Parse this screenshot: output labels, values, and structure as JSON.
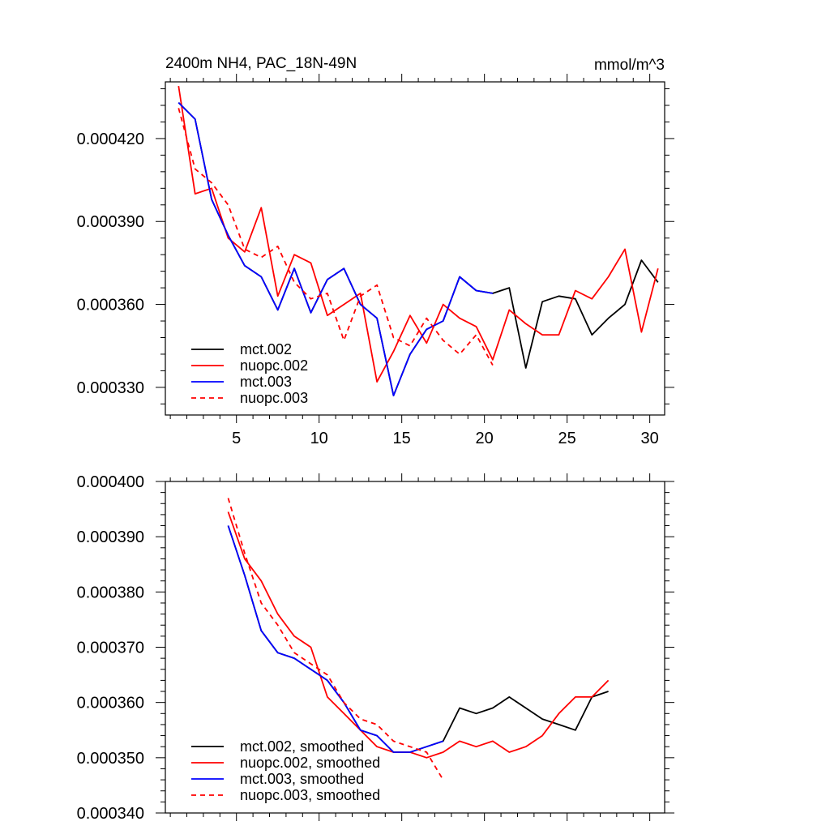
{
  "chart_data": [
    {
      "type": "line",
      "title": "2400m NH4, PAC_18N-49N",
      "units": "mmol/m^3",
      "xlabel": "",
      "ylabel": "",
      "xlim": [
        0.7,
        30.9
      ],
      "ylim": [
        0.00032,
        0.0004405
      ],
      "x_ticks": [
        5,
        10,
        15,
        20,
        25,
        30
      ],
      "x_tick_labels": [
        "5",
        "10",
        "15",
        "20",
        "25",
        "30"
      ],
      "y_ticks": [
        0.00033,
        0.00036,
        0.00039,
        0.00042
      ],
      "y_tick_labels": [
        "0.000330",
        "0.000360",
        "0.000390",
        "0.000420"
      ],
      "grid": false,
      "legend": "bottom-left",
      "series": [
        {
          "name": "mct.002",
          "color": "#000000",
          "dash": "solid",
          "x": [
            1.5,
            2.5,
            3.5,
            4.5,
            5.5,
            6.5,
            7.5,
            8.5,
            9.5,
            10.5,
            11.5,
            12.5,
            13.5,
            14.5,
            15.5,
            16.5,
            17.5,
            18.5,
            19.5,
            20.5,
            21.5,
            22.5,
            23.5,
            24.5,
            25.5,
            26.5,
            27.5,
            28.5,
            29.5,
            30.5
          ],
          "values": [
            0.000433,
            0.000427,
            0.000398,
            0.000385,
            0.000374,
            0.00037,
            0.000358,
            0.000373,
            0.000357,
            0.000369,
            0.000373,
            0.00036,
            0.000355,
            0.000327,
            0.000342,
            0.000351,
            0.000354,
            0.00037,
            0.000365,
            0.000364,
            0.000366,
            0.000337,
            0.000361,
            0.000363,
            0.000362,
            0.000349,
            0.000355,
            0.00036,
            0.000376,
            0.000368
          ]
        },
        {
          "name": "nuopc.002",
          "color": "#ff0000",
          "dash": "solid",
          "x": [
            1.5,
            2.5,
            3.5,
            4.5,
            5.5,
            6.5,
            7.5,
            8.5,
            9.5,
            10.5,
            11.5,
            12.5,
            13.5,
            14.5,
            15.5,
            16.5,
            17.5,
            18.5,
            19.5,
            20.5,
            21.5,
            22.5,
            23.5,
            24.5,
            25.5,
            26.5,
            27.5,
            28.5,
            29.5,
            30.5
          ],
          "values": [
            0.000439,
            0.0004,
            0.000402,
            0.000384,
            0.000379,
            0.000395,
            0.000363,
            0.000378,
            0.000375,
            0.000356,
            0.00036,
            0.000364,
            0.000332,
            0.000343,
            0.000356,
            0.000346,
            0.00036,
            0.000355,
            0.000352,
            0.00034,
            0.000358,
            0.000353,
            0.000349,
            0.000349,
            0.000365,
            0.000362,
            0.00037,
            0.00038,
            0.00035,
            0.000373
          ]
        },
        {
          "name": "mct.003",
          "color": "#0000ff",
          "dash": "solid",
          "x": [
            1.5,
            2.5,
            3.5,
            4.5,
            5.5,
            6.5,
            7.5,
            8.5,
            9.5,
            10.5,
            11.5,
            12.5,
            13.5,
            14.5,
            15.5,
            16.5,
            17.5,
            18.5,
            19.5,
            20.5
          ],
          "values": [
            0.000433,
            0.000427,
            0.000398,
            0.000385,
            0.000374,
            0.00037,
            0.000358,
            0.000373,
            0.000357,
            0.000369,
            0.000373,
            0.00036,
            0.000355,
            0.000327,
            0.000342,
            0.000351,
            0.000354,
            0.00037,
            0.000365,
            0.000364
          ]
        },
        {
          "name": "nuopc.003",
          "color": "#ff0000",
          "dash": "dashed",
          "x": [
            1.5,
            2.5,
            3.5,
            4.5,
            5.5,
            6.5,
            7.5,
            8.5,
            9.5,
            10.5,
            11.5,
            12.5,
            13.5,
            14.5,
            15.5,
            16.5,
            17.5,
            18.5,
            19.5,
            20.5
          ],
          "values": [
            0.000431,
            0.000409,
            0.000404,
            0.000396,
            0.00038,
            0.000377,
            0.000381,
            0.000368,
            0.000362,
            0.000364,
            0.000347,
            0.000363,
            0.000367,
            0.000348,
            0.000345,
            0.000355,
            0.000347,
            0.000342,
            0.000349,
            0.000338
          ]
        }
      ]
    },
    {
      "type": "line",
      "title": "",
      "xlabel": "",
      "ylabel": "",
      "xlim": [
        0.7,
        30.9
      ],
      "ylim": [
        0.00034,
        0.0004
      ],
      "x_ticks": [
        5,
        10,
        15,
        20,
        25,
        30
      ],
      "x_tick_labels": [
        "",
        "",
        "",
        "",
        "",
        ""
      ],
      "y_ticks": [
        0.00034,
        0.00035,
        0.00036,
        0.00037,
        0.00038,
        0.00039,
        0.0004
      ],
      "y_tick_labels": [
        "0.000340",
        "0.000350",
        "0.000360",
        "0.000370",
        "0.000380",
        "0.000390",
        "0.000400"
      ],
      "grid": false,
      "legend": "bottom-left",
      "series": [
        {
          "name": "mct.002, smoothed",
          "color": "#000000",
          "dash": "solid",
          "x": [
            4.5,
            5.5,
            6.5,
            7.5,
            8.5,
            9.5,
            10.5,
            11.5,
            12.5,
            13.5,
            14.5,
            15.5,
            16.5,
            17.5,
            18.5,
            19.5,
            20.5,
            21.5,
            22.5,
            23.5,
            24.5,
            25.5,
            26.5,
            27.5
          ],
          "values": [
            0.000392,
            0.000383,
            0.000373,
            0.000369,
            0.000368,
            0.000366,
            0.000364,
            0.00036,
            0.000355,
            0.000354,
            0.000351,
            0.000351,
            0.000352,
            0.000353,
            0.000359,
            0.000358,
            0.000359,
            0.000361,
            0.000359,
            0.000357,
            0.000356,
            0.000355,
            0.000361,
            0.000362
          ]
        },
        {
          "name": "nuopc.002, smoothed",
          "color": "#ff0000",
          "dash": "solid",
          "x": [
            4.5,
            5.5,
            6.5,
            7.5,
            8.5,
            9.5,
            10.5,
            11.5,
            12.5,
            13.5,
            14.5,
            15.5,
            16.5,
            17.5,
            18.5,
            19.5,
            20.5,
            21.5,
            22.5,
            23.5,
            24.5,
            25.5,
            26.5,
            27.5
          ],
          "values": [
            0.0003945,
            0.000386,
            0.000382,
            0.000376,
            0.000372,
            0.00037,
            0.000361,
            0.000358,
            0.000355,
            0.000352,
            0.000351,
            0.000351,
            0.00035,
            0.000351,
            0.000353,
            0.000352,
            0.000353,
            0.000351,
            0.000352,
            0.000354,
            0.000358,
            0.000361,
            0.000361,
            0.000364
          ]
        },
        {
          "name": "mct.003, smoothed",
          "color": "#0000ff",
          "dash": "solid",
          "x": [
            4.5,
            5.5,
            6.5,
            7.5,
            8.5,
            9.5,
            10.5,
            11.5,
            12.5,
            13.5,
            14.5,
            15.5,
            16.5,
            17.5
          ],
          "values": [
            0.000392,
            0.000383,
            0.000373,
            0.000369,
            0.000368,
            0.000366,
            0.000364,
            0.00036,
            0.000355,
            0.000354,
            0.000351,
            0.000351,
            0.000352,
            0.000353
          ]
        },
        {
          "name": "nuopc.003, smoothed",
          "color": "#ff0000",
          "dash": "dashed",
          "x": [
            4.5,
            5.5,
            6.5,
            7.5,
            8.5,
            9.5,
            10.5,
            11.5,
            12.5,
            13.5,
            14.5,
            15.5,
            16.5,
            17.5
          ],
          "values": [
            0.000397,
            0.000387,
            0.000378,
            0.000374,
            0.000369,
            0.000367,
            0.000365,
            0.00036,
            0.000357,
            0.000356,
            0.000353,
            0.000352,
            0.000351,
            0.000346
          ]
        }
      ]
    }
  ]
}
